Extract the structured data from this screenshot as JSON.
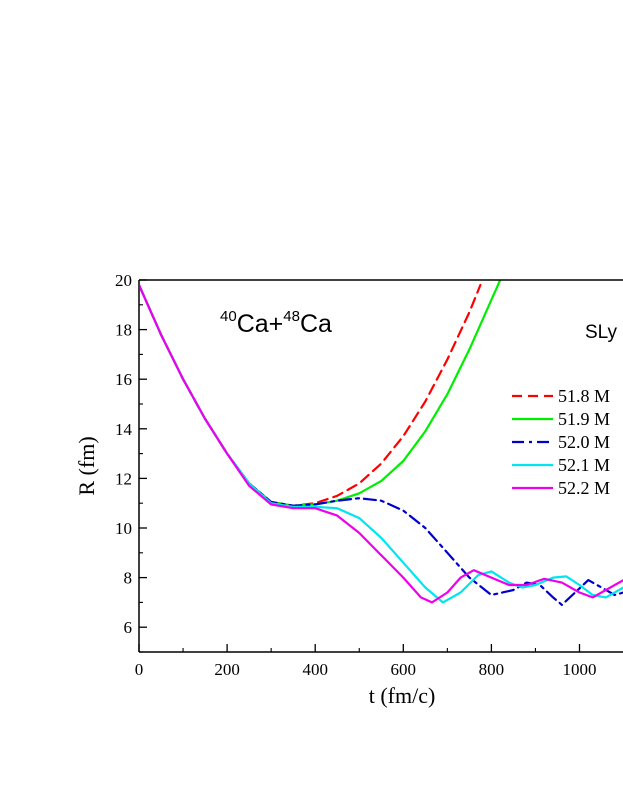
{
  "chart_data": {
    "type": "line",
    "xlabel": "t (fm/c)",
    "ylabel": "R (fm)",
    "xlim": [
      0,
      1100
    ],
    "ylim": [
      5,
      20
    ],
    "x_ticks": [
      "0",
      "200",
      "400",
      "600",
      "800",
      "1000"
    ],
    "y_ticks": [
      "6",
      "8",
      "10",
      "12",
      "14",
      "16",
      "18",
      "20"
    ],
    "grid": false,
    "legend_position": "right",
    "annotations": {
      "reaction": {
        "sup1": "40",
        "el1": "Ca+",
        "sup2": "48",
        "el2": "Ca"
      },
      "force": "SLy"
    },
    "series": [
      {
        "name": "51.8 M",
        "color": "#ff0000",
        "dash": "dash",
        "points": [
          [
            0,
            19.8
          ],
          [
            50,
            17.8
          ],
          [
            100,
            16.0
          ],
          [
            150,
            14.4
          ],
          [
            200,
            13.0
          ],
          [
            250,
            11.8
          ],
          [
            300,
            11.05
          ],
          [
            350,
            10.9
          ],
          [
            400,
            11.0
          ],
          [
            450,
            11.3
          ],
          [
            500,
            11.8
          ],
          [
            550,
            12.6
          ],
          [
            600,
            13.7
          ],
          [
            650,
            15.1
          ],
          [
            700,
            16.8
          ],
          [
            750,
            18.7
          ],
          [
            775,
            19.8
          ]
        ]
      },
      {
        "name": "51.9 M",
        "color": "#00ee00",
        "dash": "solid",
        "points": [
          [
            0,
            19.8
          ],
          [
            50,
            17.8
          ],
          [
            100,
            16.0
          ],
          [
            150,
            14.4
          ],
          [
            200,
            13.0
          ],
          [
            250,
            11.8
          ],
          [
            300,
            11.05
          ],
          [
            350,
            10.9
          ],
          [
            400,
            10.95
          ],
          [
            450,
            11.1
          ],
          [
            500,
            11.4
          ],
          [
            550,
            11.9
          ],
          [
            600,
            12.7
          ],
          [
            650,
            13.9
          ],
          [
            700,
            15.4
          ],
          [
            750,
            17.2
          ],
          [
            800,
            19.2
          ],
          [
            820,
            20.0
          ]
        ]
      },
      {
        "name": "52.0 M",
        "color": "#0000cc",
        "dash": "dashdot",
        "points": [
          [
            0,
            19.8
          ],
          [
            50,
            17.8
          ],
          [
            100,
            16.0
          ],
          [
            150,
            14.4
          ],
          [
            200,
            13.0
          ],
          [
            250,
            11.8
          ],
          [
            300,
            11.05
          ],
          [
            350,
            10.9
          ],
          [
            400,
            10.95
          ],
          [
            450,
            11.1
          ],
          [
            500,
            11.2
          ],
          [
            550,
            11.1
          ],
          [
            600,
            10.7
          ],
          [
            650,
            10.0
          ],
          [
            700,
            9.0
          ],
          [
            750,
            8.0
          ],
          [
            800,
            7.3
          ],
          [
            850,
            7.5
          ],
          [
            880,
            7.8
          ],
          [
            910,
            7.7
          ],
          [
            940,
            7.2
          ],
          [
            960,
            6.9
          ],
          [
            990,
            7.4
          ],
          [
            1020,
            7.9
          ],
          [
            1050,
            7.6
          ],
          [
            1080,
            7.3
          ],
          [
            1100,
            7.4
          ]
        ]
      },
      {
        "name": "52.1 M",
        "color": "#00e5ee",
        "dash": "solid",
        "points": [
          [
            0,
            19.8
          ],
          [
            50,
            17.8
          ],
          [
            100,
            16.0
          ],
          [
            150,
            14.4
          ],
          [
            200,
            13.0
          ],
          [
            250,
            11.8
          ],
          [
            300,
            11.0
          ],
          [
            350,
            10.85
          ],
          [
            400,
            10.85
          ],
          [
            450,
            10.8
          ],
          [
            500,
            10.4
          ],
          [
            550,
            9.6
          ],
          [
            600,
            8.6
          ],
          [
            650,
            7.6
          ],
          [
            690,
            7.0
          ],
          [
            730,
            7.4
          ],
          [
            770,
            8.1
          ],
          [
            800,
            8.25
          ],
          [
            840,
            7.8
          ],
          [
            870,
            7.6
          ],
          [
            900,
            7.7
          ],
          [
            940,
            8.0
          ],
          [
            970,
            8.05
          ],
          [
            1000,
            7.7
          ],
          [
            1030,
            7.3
          ],
          [
            1060,
            7.2
          ],
          [
            1100,
            7.6
          ]
        ]
      },
      {
        "name": "52.2 M",
        "color": "#ee00ee",
        "dash": "solid",
        "points": [
          [
            0,
            19.8
          ],
          [
            50,
            17.8
          ],
          [
            100,
            16.0
          ],
          [
            150,
            14.4
          ],
          [
            200,
            13.0
          ],
          [
            250,
            11.7
          ],
          [
            300,
            10.95
          ],
          [
            350,
            10.8
          ],
          [
            400,
            10.8
          ],
          [
            450,
            10.5
          ],
          [
            500,
            9.8
          ],
          [
            550,
            8.9
          ],
          [
            600,
            8.0
          ],
          [
            640,
            7.2
          ],
          [
            665,
            7.0
          ],
          [
            700,
            7.4
          ],
          [
            730,
            8.0
          ],
          [
            760,
            8.3
          ],
          [
            800,
            8.0
          ],
          [
            840,
            7.7
          ],
          [
            880,
            7.7
          ],
          [
            920,
            7.95
          ],
          [
            960,
            7.8
          ],
          [
            1000,
            7.4
          ],
          [
            1030,
            7.2
          ],
          [
            1060,
            7.5
          ],
          [
            1100,
            7.9
          ]
        ]
      }
    ]
  }
}
